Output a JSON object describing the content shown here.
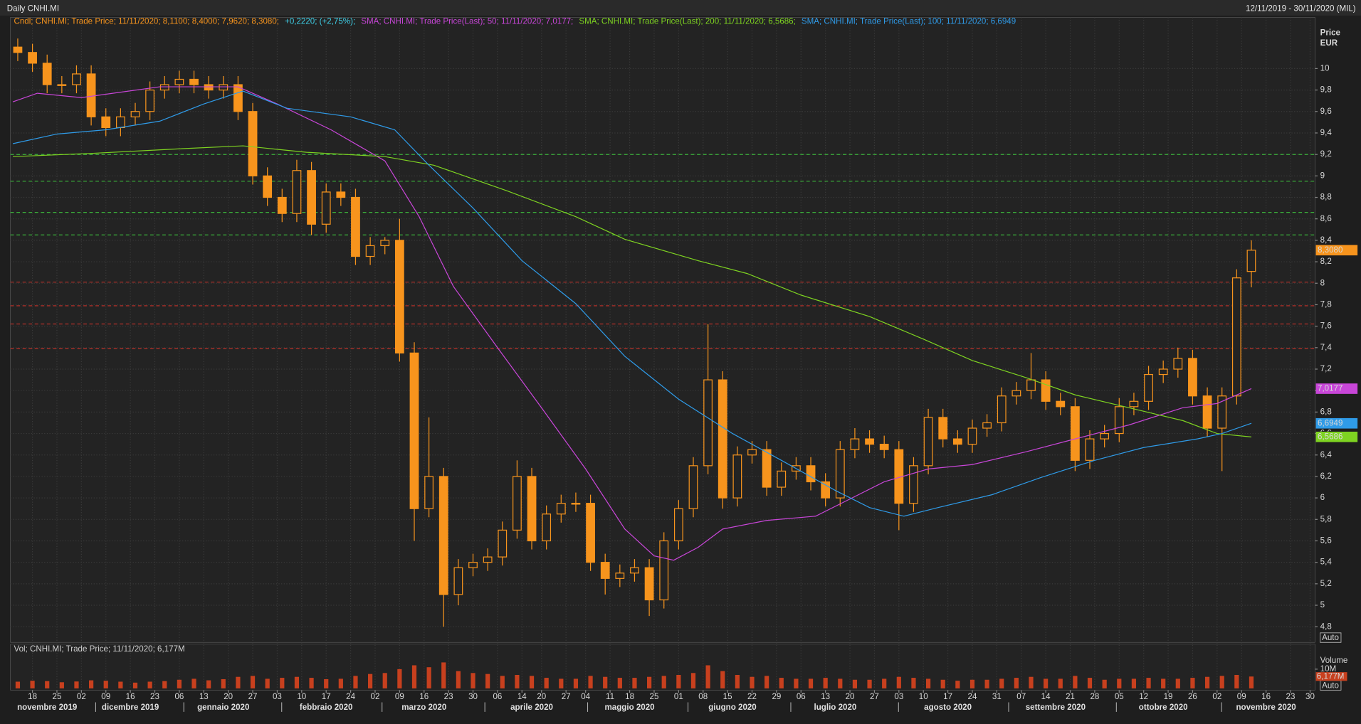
{
  "chart_data": {
    "type": "candlestick",
    "title": "Daily CNHI.MI",
    "date_range": "12/11/2019 - 30/11/2020 (MIL)",
    "y_axis_label": "Price",
    "y_axis_unit": "EUR",
    "auto_label": "Auto",
    "volume_axis_label": "Volume",
    "grid": true,
    "xlim": [
      -0.5,
      266
    ],
    "ylim": [
      4.654,
      10.477
    ],
    "yticks": [
      {
        "value": 4.8,
        "label": "4,8"
      },
      5,
      {
        "value": 5.2,
        "label": "5,2"
      },
      {
        "value": 5.4,
        "label": "5,4"
      },
      {
        "value": 5.6,
        "label": "5,6"
      },
      {
        "value": 5.8,
        "label": "5,8"
      },
      6,
      {
        "value": 6.2,
        "label": "6,2"
      },
      {
        "value": 6.4,
        "label": "6,4"
      },
      {
        "value": 6.6,
        "label": "6,6"
      },
      {
        "value": 6.8,
        "label": "6,8"
      },
      7,
      {
        "value": 7.2,
        "label": "7,2"
      },
      {
        "value": 7.4,
        "label": "7,4"
      },
      {
        "value": 7.6,
        "label": "7,6"
      },
      {
        "value": 7.8,
        "label": "7,8"
      },
      8,
      {
        "value": 8.2,
        "label": "8,2"
      },
      {
        "value": 8.4,
        "label": "8,4"
      },
      {
        "value": 8.6,
        "label": "8,6"
      },
      {
        "value": 8.8,
        "label": "8,8"
      },
      9,
      {
        "value": 9.2,
        "label": "9,2"
      },
      {
        "value": 9.4,
        "label": "9,4"
      },
      {
        "value": 9.6,
        "label": "9,6"
      },
      {
        "value": 9.8,
        "label": "9,8"
      },
      10
    ],
    "xticks": [
      {
        "value": 4,
        "label": "18"
      },
      {
        "value": 9,
        "label": "25"
      },
      {
        "value": 14,
        "label": "02"
      },
      {
        "value": 19,
        "label": "09"
      },
      {
        "value": 24,
        "label": "16"
      },
      {
        "value": 29,
        "label": "23"
      },
      {
        "value": 34,
        "label": "06"
      },
      {
        "value": 39,
        "label": "13"
      },
      {
        "value": 44,
        "label": "20"
      },
      {
        "value": 49,
        "label": "27"
      },
      {
        "value": 54,
        "label": "03"
      },
      {
        "value": 59,
        "label": "10"
      },
      {
        "value": 64,
        "label": "17"
      },
      {
        "value": 69,
        "label": "24"
      },
      {
        "value": 74,
        "label": "02"
      },
      {
        "value": 79,
        "label": "09"
      },
      {
        "value": 84,
        "label": "16"
      },
      {
        "value": 89,
        "label": "23"
      },
      {
        "value": 94,
        "label": "30"
      },
      {
        "value": 99,
        "label": "06"
      },
      {
        "value": 104,
        "label": "14"
      },
      {
        "value": 108,
        "label": "20"
      },
      {
        "value": 113,
        "label": "27"
      },
      {
        "value": 117,
        "label": "04"
      },
      {
        "value": 122,
        "label": "11"
      },
      {
        "value": 126,
        "label": "18"
      },
      {
        "value": 131,
        "label": "25"
      },
      {
        "value": 136,
        "label": "01"
      },
      {
        "value": 141,
        "label": "08"
      },
      {
        "value": 146,
        "label": "15"
      },
      {
        "value": 151,
        "label": "22"
      },
      {
        "value": 156,
        "label": "29"
      },
      {
        "value": 161,
        "label": "06"
      },
      {
        "value": 166,
        "label": "13"
      },
      {
        "value": 171,
        "label": "20"
      },
      {
        "value": 176,
        "label": "27"
      },
      {
        "value": 181,
        "label": "03"
      },
      {
        "value": 186,
        "label": "10"
      },
      {
        "value": 191,
        "label": "17"
      },
      {
        "value": 196,
        "label": "24"
      },
      {
        "value": 201,
        "label": "31"
      },
      {
        "value": 206,
        "label": "07"
      },
      {
        "value": 211,
        "label": "14"
      },
      {
        "value": 216,
        "label": "21"
      },
      {
        "value": 221,
        "label": "28"
      },
      {
        "value": 226,
        "label": "05"
      },
      {
        "value": 231,
        "label": "12"
      },
      {
        "value": 236,
        "label": "19"
      },
      {
        "value": 241,
        "label": "26"
      },
      {
        "value": 246,
        "label": "02"
      },
      {
        "value": 251,
        "label": "09"
      },
      {
        "value": 256,
        "label": "16"
      },
      {
        "value": 261,
        "label": "23"
      },
      {
        "value": 265,
        "label": "30"
      }
    ],
    "months": [
      {
        "value": 7,
        "label": "novembre 2019"
      },
      {
        "value": 24,
        "label": "dicembre 2019"
      },
      {
        "value": 43,
        "label": "gennaio 2020"
      },
      {
        "value": 64,
        "label": "febbraio 2020"
      },
      {
        "value": 84,
        "label": "marzo 2020"
      },
      {
        "value": 106,
        "label": "aprile 2020"
      },
      {
        "value": 126,
        "label": "maggio 2020"
      },
      {
        "value": 147,
        "label": "giugno 2020"
      },
      {
        "value": 168,
        "label": "luglio 2020"
      },
      {
        "value": 191,
        "label": "agosto 2020"
      },
      {
        "value": 213,
        "label": "settembre 2020"
      },
      {
        "value": 235,
        "label": "ottobre 2020"
      },
      {
        "value": 256,
        "label": "novembre 2020"
      }
    ],
    "candles": {
      "name": "Cndl; CNHI.MI; Trade Price; 11/11/2020; 8,1100; 8,4000; 7,9620; 8,3080;",
      "change": "+0,2220; (+2,75%);",
      "color": "#f7941d",
      "change_color": "#3fd0e8",
      "x": [
        1,
        4,
        7,
        10,
        13,
        16,
        19,
        22,
        25,
        28,
        31,
        34,
        37,
        40,
        43,
        46,
        49,
        52,
        55,
        58,
        61,
        64,
        67,
        70,
        73,
        76,
        79,
        82,
        85,
        88,
        91,
        94,
        97,
        100,
        103,
        106,
        109,
        112,
        115,
        118,
        121,
        124,
        127,
        130,
        133,
        136,
        139,
        142,
        145,
        148,
        151,
        154,
        157,
        160,
        163,
        166,
        169,
        172,
        175,
        178,
        181,
        184,
        187,
        190,
        193,
        196,
        199,
        202,
        205,
        208,
        211,
        214,
        217,
        220,
        223,
        226,
        229,
        232,
        235,
        238,
        241,
        244,
        247,
        250,
        253
      ],
      "open": [
        10.2,
        10.15,
        10.05,
        9.85,
        9.85,
        9.95,
        9.55,
        9.45,
        9.55,
        9.6,
        9.8,
        9.85,
        9.9,
        9.85,
        9.8,
        9.85,
        9.6,
        9.0,
        8.8,
        8.65,
        9.05,
        8.55,
        8.85,
        8.8,
        8.25,
        8.35,
        8.4,
        7.35,
        5.9,
        6.2,
        5.1,
        5.35,
        5.4,
        5.45,
        5.7,
        6.2,
        5.6,
        5.85,
        5.95,
        5.95,
        5.4,
        5.25,
        5.3,
        5.35,
        5.05,
        5.6,
        5.9,
        6.3,
        7.1,
        6.0,
        6.4,
        6.45,
        6.1,
        6.25,
        6.3,
        6.15,
        6.0,
        6.45,
        6.55,
        6.5,
        6.45,
        5.95,
        6.3,
        6.75,
        6.55,
        6.5,
        6.65,
        6.7,
        6.95,
        7.0,
        7.1,
        6.9,
        6.85,
        6.35,
        6.55,
        6.6,
        6.85,
        6.9,
        7.15,
        7.2,
        7.3,
        6.95,
        6.65,
        6.95,
        8.11
      ],
      "high": [
        10.28,
        10.23,
        10.13,
        9.93,
        10.03,
        10.03,
        9.63,
        9.63,
        9.68,
        9.88,
        9.93,
        9.98,
        9.98,
        9.93,
        9.93,
        9.93,
        9.68,
        9.08,
        8.88,
        9.15,
        9.13,
        8.93,
        8.93,
        8.88,
        8.43,
        8.43,
        8.6,
        7.45,
        6.75,
        6.28,
        5.43,
        5.48,
        5.53,
        5.78,
        6.35,
        6.28,
        5.93,
        6.03,
        6.05,
        6.03,
        5.48,
        5.38,
        5.43,
        5.43,
        5.68,
        5.98,
        6.38,
        7.62,
        7.18,
        6.48,
        6.53,
        6.53,
        6.33,
        6.38,
        6.38,
        6.23,
        6.53,
        6.65,
        6.63,
        6.58,
        6.53,
        6.38,
        6.83,
        6.83,
        6.63,
        6.73,
        6.78,
        7.03,
        7.08,
        7.35,
        7.18,
        6.98,
        6.93,
        6.63,
        6.68,
        6.93,
        6.98,
        7.23,
        7.28,
        7.4,
        7.38,
        7.03,
        7.03,
        8.13,
        8.4
      ],
      "low": [
        10.07,
        9.97,
        9.77,
        9.77,
        9.77,
        9.47,
        9.37,
        9.37,
        9.47,
        9.52,
        9.72,
        9.77,
        9.77,
        9.72,
        9.72,
        9.52,
        8.92,
        8.72,
        8.57,
        8.57,
        8.45,
        8.47,
        8.72,
        8.17,
        8.17,
        8.27,
        7.27,
        5.6,
        5.82,
        4.8,
        5.0,
        5.27,
        5.32,
        5.37,
        5.62,
        5.52,
        5.52,
        5.77,
        5.87,
        5.32,
        5.1,
        5.17,
        5.22,
        4.9,
        4.97,
        5.52,
        5.82,
        6.22,
        5.9,
        5.92,
        6.32,
        6.02,
        6.02,
        6.17,
        6.07,
        5.92,
        5.92,
        6.37,
        6.42,
        6.37,
        5.7,
        5.87,
        6.22,
        6.47,
        6.42,
        6.42,
        6.57,
        6.62,
        6.87,
        6.92,
        6.82,
        6.77,
        6.25,
        6.27,
        6.47,
        6.52,
        6.77,
        6.82,
        7.07,
        7.12,
        6.87,
        6.57,
        6.25,
        6.87,
        7.962
      ],
      "close": [
        10.15,
        10.05,
        9.85,
        9.85,
        9.95,
        9.55,
        9.45,
        9.55,
        9.6,
        9.8,
        9.85,
        9.9,
        9.85,
        9.8,
        9.85,
        9.6,
        9.0,
        8.8,
        8.65,
        9.05,
        8.55,
        8.85,
        8.8,
        8.25,
        8.35,
        8.4,
        7.35,
        5.9,
        6.2,
        5.1,
        5.35,
        5.4,
        5.45,
        5.7,
        6.2,
        5.6,
        5.85,
        5.95,
        5.95,
        5.4,
        5.25,
        5.3,
        5.35,
        5.05,
        5.6,
        5.9,
        6.3,
        7.1,
        6.0,
        6.4,
        6.45,
        6.1,
        6.25,
        6.3,
        6.15,
        6.0,
        6.45,
        6.55,
        6.5,
        6.45,
        5.95,
        6.3,
        6.75,
        6.55,
        6.5,
        6.65,
        6.7,
        6.95,
        7.0,
        7.1,
        6.9,
        6.85,
        6.35,
        6.55,
        6.6,
        6.85,
        6.9,
        7.15,
        7.2,
        7.3,
        6.95,
        6.65,
        6.95,
        8.05,
        8.308
      ]
    },
    "sma": [
      {
        "name": "SMA; CNHI.MI; Trade Price(Last); 50; 11/11/2020; 7,0177;",
        "color": "#c846d8",
        "x": [
          0,
          5,
          14,
          30,
          46,
          54,
          65,
          76,
          83,
          90,
          99,
          108,
          117,
          125,
          131,
          135,
          140,
          145,
          154,
          164,
          171,
          178,
          187,
          196,
          207,
          217,
          228,
          239,
          246,
          253
        ],
        "values": [
          9.69,
          9.77,
          9.73,
          9.83,
          9.83,
          9.67,
          9.43,
          9.14,
          8.62,
          7.97,
          7.4,
          6.84,
          6.27,
          5.71,
          5.46,
          5.42,
          5.54,
          5.71,
          5.79,
          5.83,
          5.99,
          6.15,
          6.27,
          6.31,
          6.43,
          6.55,
          6.68,
          6.84,
          6.88,
          7.0177
        ]
      },
      {
        "name": "SMA; CNHI.MI; Trade Price(Last); 200; 11/11/2020; 6,5686;",
        "color": "#7ed321",
        "x": [
          0,
          16,
          33,
          47,
          60,
          76,
          86,
          101,
          115,
          125,
          140,
          150,
          161,
          175,
          186,
          196,
          207,
          217,
          228,
          239,
          246,
          253
        ],
        "values": [
          9.18,
          9.21,
          9.25,
          9.28,
          9.22,
          9.18,
          9.1,
          8.86,
          8.62,
          8.41,
          8.21,
          8.09,
          7.89,
          7.69,
          7.48,
          7.28,
          7.12,
          6.96,
          6.84,
          6.72,
          6.6,
          6.5686
        ]
      },
      {
        "name": "SMA; CNHI.MI; Trade Price(Last); 100; 11/11/2020; 6,6949",
        "color": "#2f9be8",
        "x": [
          0,
          9,
          19,
          30,
          39,
          47,
          56,
          69,
          78,
          85,
          94,
          104,
          115,
          125,
          136,
          147,
          157,
          168,
          175,
          182,
          189,
          200,
          210,
          221,
          231,
          242,
          247,
          253
        ],
        "values": [
          9.3,
          9.39,
          9.43,
          9.51,
          9.67,
          9.79,
          9.63,
          9.55,
          9.43,
          9.1,
          8.7,
          8.21,
          7.81,
          7.32,
          6.92,
          6.6,
          6.35,
          6.07,
          5.91,
          5.83,
          5.91,
          6.03,
          6.19,
          6.35,
          6.47,
          6.55,
          6.6,
          6.6949
        ]
      }
    ],
    "hlines": [
      {
        "value": 9.2,
        "color": "#3ec43e"
      },
      {
        "value": 8.95,
        "color": "#3ec43e"
      },
      {
        "value": 8.66,
        "color": "#3ec43e"
      },
      {
        "value": 8.45,
        "color": "#3ec43e"
      },
      {
        "value": 8.01,
        "color": "#c8322a"
      },
      {
        "value": 7.79,
        "color": "#c8322a"
      },
      {
        "value": 7.62,
        "color": "#c8322a"
      },
      {
        "value": 7.39,
        "color": "#c8322a"
      }
    ],
    "tags": [
      {
        "value": 8.308,
        "label": "8,3080",
        "color": "#f7941d"
      },
      {
        "value": 7.0177,
        "label": "7,0177",
        "color": "#c846d8"
      },
      {
        "value": 6.6949,
        "label": "6,6949",
        "color": "#2f9be8"
      },
      {
        "value": 6.5686,
        "label": "6,5686",
        "color": "#7ed321"
      }
    ],
    "volume": {
      "name": "Vol; CNHI.MI; Trade Price; 11/11/2020; 6,177M",
      "color": "#c8401e",
      "ylim": [
        0,
        23
      ],
      "yticks": [
        {
          "value": 10,
          "label": "10M"
        }
      ],
      "tag": {
        "value": 6.177,
        "label": "6,177M"
      },
      "values": [
        3.5,
        4,
        3.8,
        3.2,
        3.6,
        4.2,
        4,
        3.5,
        3,
        3.5,
        3.8,
        4.5,
        5,
        4.2,
        4.8,
        6,
        6.5,
        5,
        5.5,
        6,
        5.5,
        4.8,
        5,
        6.5,
        7.5,
        8,
        10,
        12,
        11,
        13.5,
        9,
        8,
        7.5,
        6.5,
        7,
        6.5,
        5.5,
        5,
        5,
        6.5,
        6,
        5.5,
        5.5,
        6,
        6.5,
        7,
        8,
        12,
        9,
        7,
        6,
        6.5,
        5.5,
        5,
        5,
        5.5,
        5,
        4.5,
        4.5,
        5,
        6,
        5.5,
        5,
        4.5,
        4,
        4.5,
        4.5,
        5,
        5.5,
        6,
        5,
        5,
        6.5,
        5.5,
        4.5,
        5,
        5,
        5.5,
        5,
        5,
        5.5,
        6,
        6.5,
        7,
        6.177
      ]
    }
  }
}
